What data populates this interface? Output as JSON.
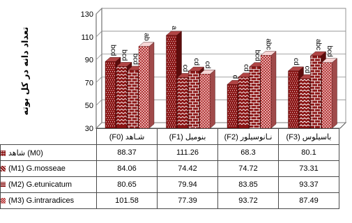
{
  "chart_data": {
    "type": "bar",
    "categories": [
      "(F0) شـاهد",
      "(F1) بنومیل",
      "(F2) نـانوسیلور",
      "(F3) باسیلوس"
    ],
    "ylabel": "تعداد دانه در کل بوته",
    "ylim": [
      30,
      130
    ],
    "yticks": [
      30,
      50,
      70,
      90,
      110,
      130
    ],
    "grid": true,
    "legend": "left",
    "series": [
      {
        "name": "شاهد (M0)",
        "values": [
          88.37,
          111.26,
          68.3,
          80.1
        ],
        "labels": [
          "bcd",
          "a",
          "d",
          "cd"
        ],
        "color": "#8b1515"
      },
      {
        "name": "(M1) G.mosseae",
        "values": [
          84.06,
          74.42,
          74.72,
          73.31
        ],
        "labels": [
          "bcd",
          "cd",
          "cd",
          "cd"
        ],
        "color": "#8b1515"
      },
      {
        "name": "(M2) G.etunicatum",
        "values": [
          80.65,
          79.94,
          83.85,
          93.37
        ],
        "labels": [
          "bcd",
          "cd",
          "bcd",
          "abc"
        ],
        "color": "#8b1515"
      },
      {
        "name": "(M3) G.intraradices",
        "values": [
          101.58,
          77.39,
          93.72,
          87.49
        ],
        "labels": [
          "ab",
          "cd",
          "abc",
          "bcd"
        ],
        "color": "#a51d1d"
      }
    ]
  }
}
